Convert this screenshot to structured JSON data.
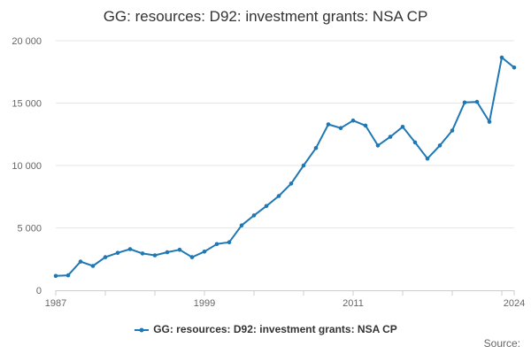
{
  "chart_data": {
    "type": "line",
    "title": "GG: resources: D92: investment grants: NSA CP",
    "xlabel": "",
    "ylabel": "",
    "xlim": [
      1987,
      2024
    ],
    "ylim": [
      0,
      20000
    ],
    "x_ticks": [
      1987,
      1999,
      2011,
      2024
    ],
    "y_ticks": [
      0,
      5000,
      10000,
      15000,
      20000
    ],
    "y_tick_labels": [
      "0",
      "5 000",
      "10 000",
      "15 000",
      "20 000"
    ],
    "grid": "horizontal",
    "legend_position": "bottom",
    "series": [
      {
        "name": "GG: resources: D92: investment grants: NSA CP",
        "color": "#1f78b4",
        "x": [
          1987,
          1988,
          1989,
          1990,
          1991,
          1992,
          1993,
          1994,
          1995,
          1996,
          1997,
          1998,
          1999,
          2000,
          2001,
          2002,
          2003,
          2004,
          2005,
          2006,
          2007,
          2008,
          2009,
          2010,
          2011,
          2012,
          2013,
          2014,
          2015,
          2016,
          2017,
          2018,
          2019,
          2020,
          2021,
          2022,
          2023,
          2024
        ],
        "values": [
          1150,
          1200,
          2300,
          1950,
          2650,
          3000,
          3300,
          2950,
          2800,
          3050,
          3250,
          2650,
          3100,
          3700,
          3850,
          5200,
          6000,
          6750,
          7550,
          8550,
          10000,
          11400,
          13300,
          13000,
          13600,
          13200,
          11600,
          12300,
          13100,
          11850,
          10550,
          11600,
          12800,
          15050,
          15100,
          13500,
          18650,
          17850
        ]
      }
    ]
  },
  "source_label": "Source:"
}
